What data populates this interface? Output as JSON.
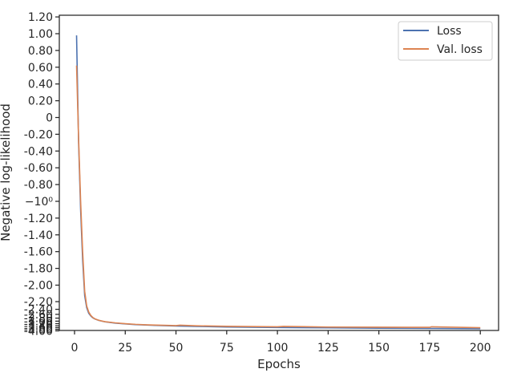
{
  "chart_data": {
    "type": "line",
    "title": "",
    "xlabel": "Epochs",
    "ylabel": "Negative log-likelihood",
    "xlim": [
      -7.5,
      209
    ],
    "x_ticks": [
      0,
      25,
      50,
      75,
      100,
      125,
      150,
      175,
      200
    ],
    "ylim": [
      -4.0,
      1.2
    ],
    "y_scale": "symlog",
    "y_ticks": [
      {
        "value": 1.2,
        "label": "1.20"
      },
      {
        "value": 1.0,
        "label": "1.00"
      },
      {
        "value": 0.8,
        "label": "0.80"
      },
      {
        "value": 0.6,
        "label": "0.60"
      },
      {
        "value": 0.4,
        "label": "0.40"
      },
      {
        "value": 0.2,
        "label": "0.20"
      },
      {
        "value": 0.0,
        "label": "0"
      },
      {
        "value": -0.2,
        "label": "-0.20"
      },
      {
        "value": -0.4,
        "label": "-0.40"
      },
      {
        "value": -0.6,
        "label": "-0.60"
      },
      {
        "value": -0.8,
        "label": "-0.80"
      },
      {
        "value": -1.0,
        "label": "−10⁰"
      },
      {
        "value": -1.2,
        "label": "-1.20"
      },
      {
        "value": -1.4,
        "label": "-1.40"
      },
      {
        "value": -1.6,
        "label": "-1.60"
      },
      {
        "value": -1.8,
        "label": "-1.80"
      },
      {
        "value": -2.0,
        "label": "-2.00"
      },
      {
        "value": -2.2,
        "label": "-2.20"
      },
      {
        "value": -2.4,
        "label": "-2.40"
      },
      {
        "value": -2.6,
        "label": "-2.60"
      },
      {
        "value": -2.8,
        "label": "-2.80"
      },
      {
        "value": -3.0,
        "label": "-3.00"
      },
      {
        "value": -3.2,
        "label": "-3.20"
      },
      {
        "value": -3.4,
        "label": "-3.40"
      },
      {
        "value": -3.6,
        "label": "-3.60"
      },
      {
        "value": -3.8,
        "label": "-3.80"
      },
      {
        "value": -4.0,
        "label": "-4.00"
      }
    ],
    "grid": false,
    "legend_position": "top-right",
    "series": [
      {
        "name": "Loss",
        "color": "#4c72b0",
        "points": [
          [
            1,
            0.98
          ],
          [
            2,
            -0.3
          ],
          [
            3,
            -1.1
          ],
          [
            4,
            -1.7
          ],
          [
            5,
            -2.1
          ],
          [
            6,
            -2.35
          ],
          [
            7,
            -2.55
          ],
          [
            8,
            -2.68
          ],
          [
            9,
            -2.78
          ],
          [
            10,
            -2.85
          ],
          [
            12,
            -2.95
          ],
          [
            15,
            -3.05
          ],
          [
            20,
            -3.15
          ],
          [
            25,
            -3.22
          ],
          [
            30,
            -3.28
          ],
          [
            35,
            -3.32
          ],
          [
            40,
            -3.36
          ],
          [
            50,
            -3.42
          ],
          [
            60,
            -3.46
          ],
          [
            75,
            -3.52
          ],
          [
            100,
            -3.58
          ],
          [
            125,
            -3.62
          ],
          [
            150,
            -3.66
          ],
          [
            175,
            -3.69
          ],
          [
            200,
            -3.72
          ]
        ]
      },
      {
        "name": "Val. loss",
        "color": "#dd8452",
        "points": [
          [
            1,
            0.62
          ],
          [
            2,
            -0.25
          ],
          [
            3,
            -1.0
          ],
          [
            4,
            -1.6
          ],
          [
            5,
            -2.05
          ],
          [
            6,
            -2.3
          ],
          [
            7,
            -2.5
          ],
          [
            8,
            -2.65
          ],
          [
            9,
            -2.76
          ],
          [
            10,
            -2.84
          ],
          [
            12,
            -2.94
          ],
          [
            15,
            -3.04
          ],
          [
            20,
            -3.13
          ],
          [
            25,
            -3.2
          ],
          [
            30,
            -3.26
          ],
          [
            35,
            -3.3
          ],
          [
            40,
            -3.33
          ],
          [
            50,
            -3.38
          ],
          [
            52,
            -3.34
          ],
          [
            60,
            -3.4
          ],
          [
            75,
            -3.45
          ],
          [
            100,
            -3.5
          ],
          [
            103,
            -3.46
          ],
          [
            125,
            -3.53
          ],
          [
            150,
            -3.55
          ],
          [
            175,
            -3.56
          ],
          [
            176,
            -3.5
          ],
          [
            200,
            -3.6
          ]
        ]
      }
    ]
  }
}
